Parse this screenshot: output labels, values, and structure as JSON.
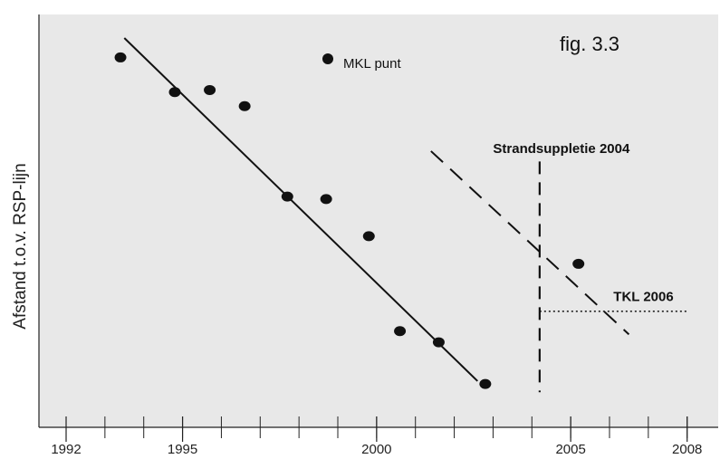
{
  "chart_data": {
    "type": "scatter",
    "figure_label": "fig.  3.3",
    "title": "",
    "xlabel": "",
    "ylabel": "Afstand t.o.v. RSP-lijn",
    "x_tick_labels": [
      "1992",
      "1995",
      "2000",
      "2005",
      "2008"
    ],
    "x_tick_values": [
      1992,
      1995,
      2000,
      2005,
      2008
    ],
    "xlim": [
      1991.3,
      2008.8
    ],
    "ylim": [
      0,
      100
    ],
    "grid": false,
    "legend": {
      "entry": "MKL punt",
      "placement": "top-center"
    },
    "series": [
      {
        "name": "MKL punt",
        "points": [
          {
            "x": 1993.4,
            "y": 89.6
          },
          {
            "x": 1994.8,
            "y": 81.2
          },
          {
            "x": 1995.7,
            "y": 81.7
          },
          {
            "x": 1996.6,
            "y": 77.8
          },
          {
            "x": 1997.7,
            "y": 55.9
          },
          {
            "x": 1998.7,
            "y": 55.3
          },
          {
            "x": 1999.8,
            "y": 46.3
          },
          {
            "x": 2000.6,
            "y": 23.3
          },
          {
            "x": 2001.6,
            "y": 20.6
          },
          {
            "x": 2002.8,
            "y": 10.5
          },
          {
            "x": 2005.2,
            "y": 39.6
          }
        ]
      }
    ],
    "lines": [
      {
        "style": "solid",
        "points": [
          {
            "x": 1993.5,
            "y": 94.3
          },
          {
            "x": 2002.6,
            "y": 11.2
          }
        ]
      },
      {
        "style": "dashed",
        "points": [
          {
            "x": 2001.4,
            "y": 66.9
          },
          {
            "x": 2006.5,
            "y": 22.5
          }
        ]
      },
      {
        "style": "dotted",
        "points": [
          {
            "x": 2004.2,
            "y": 28.1
          },
          {
            "x": 2008.0,
            "y": 28.1
          }
        ]
      }
    ],
    "vlines": [
      {
        "style": "dashed",
        "x": 2004.2,
        "y_range": [
          8.5,
          64.4
        ]
      }
    ],
    "annotations": [
      {
        "text": "Strandsuppletie 2004",
        "x": 2003.0,
        "y": 66.4
      },
      {
        "text": "TKL 2006",
        "x": 2006.1,
        "y": 30.6
      }
    ]
  }
}
